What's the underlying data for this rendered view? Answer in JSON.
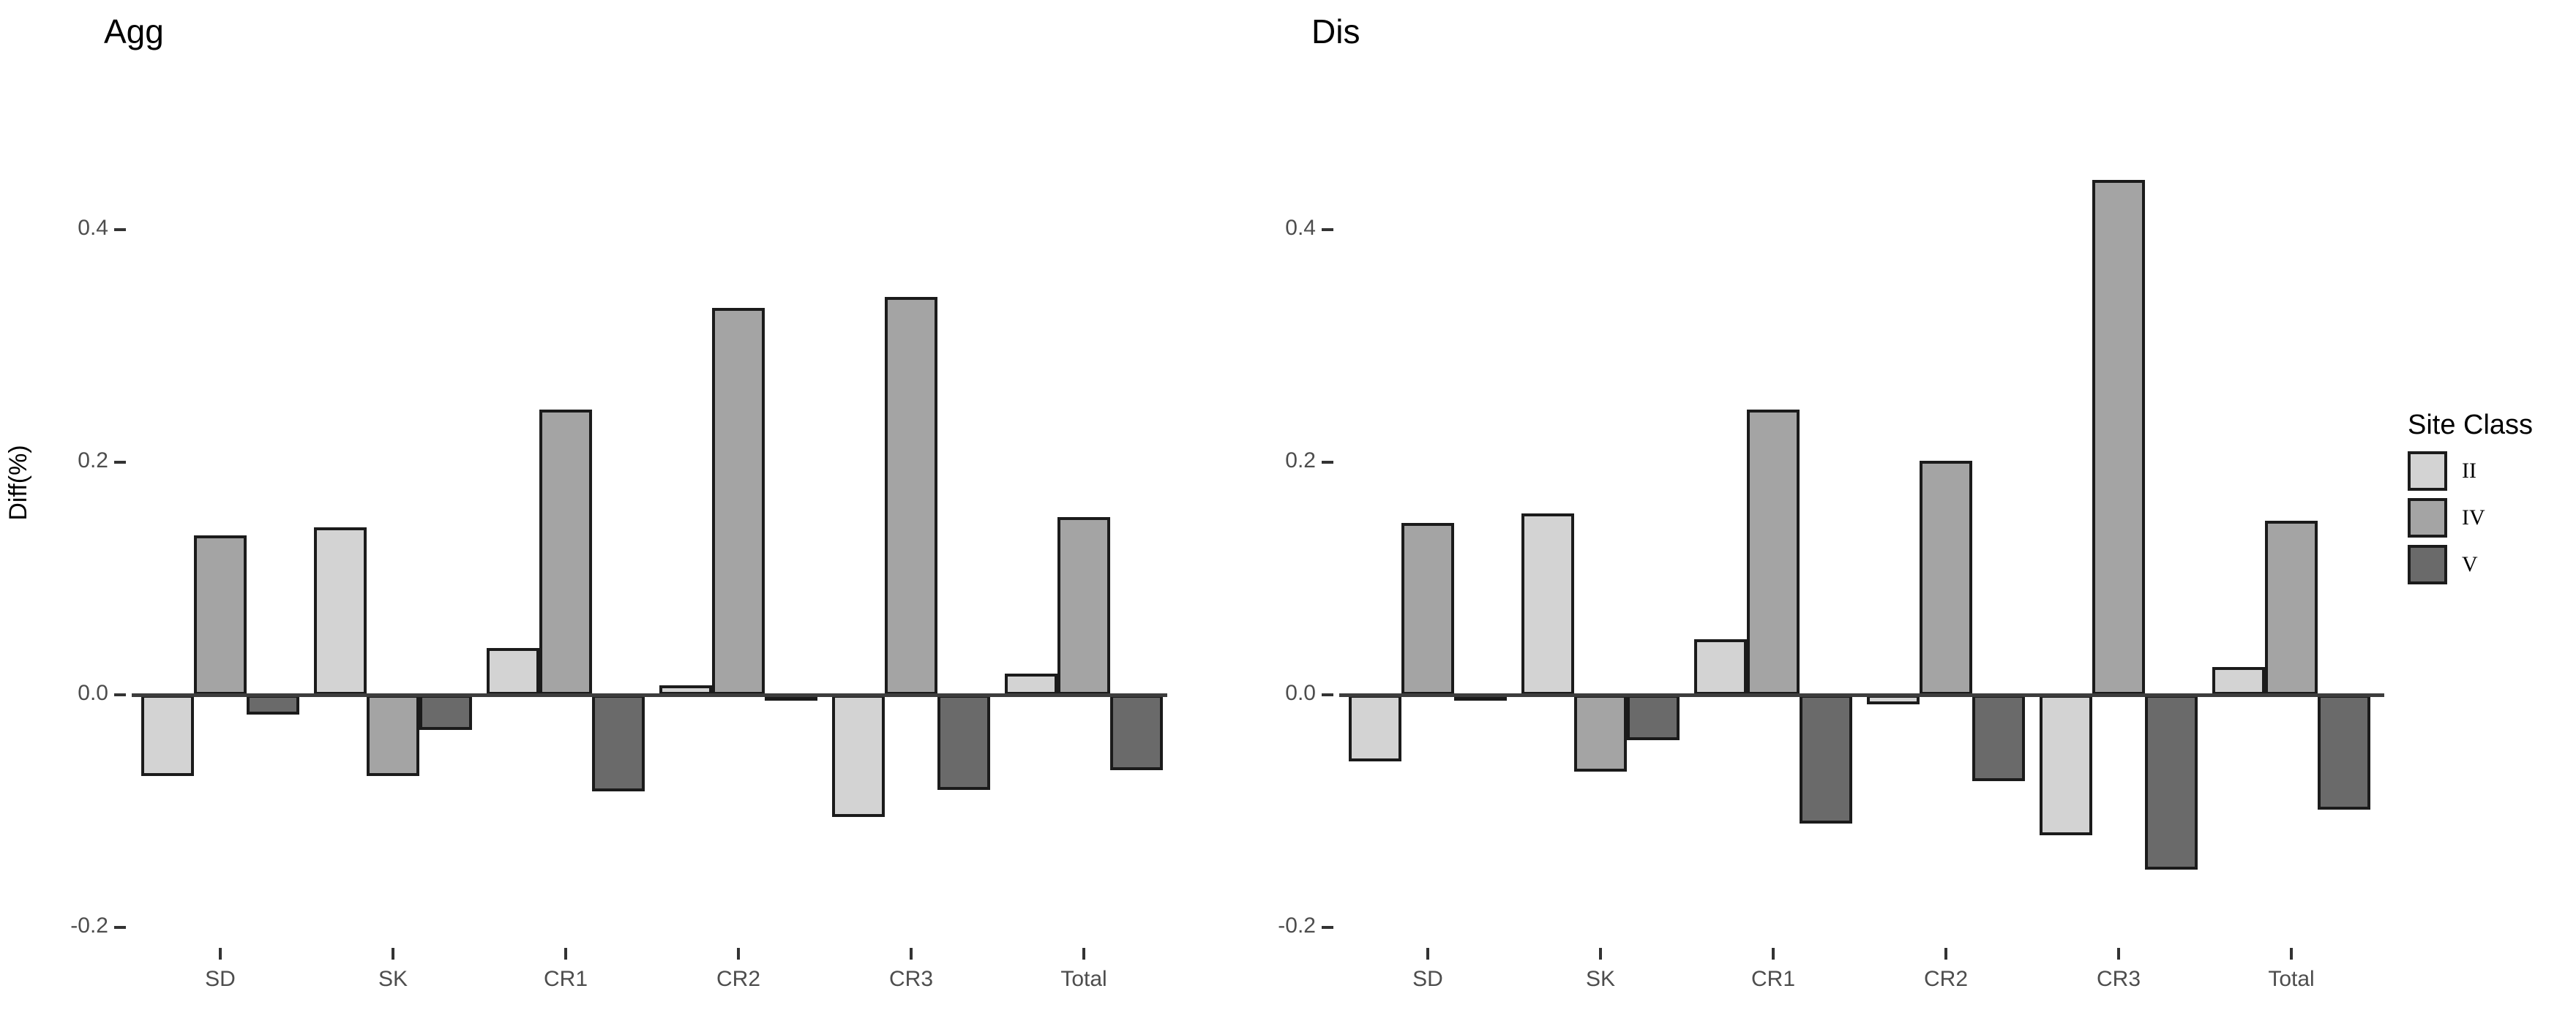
{
  "figure": {
    "ylabel": "Diff(%)",
    "y_ticks": [
      0.4,
      0.2,
      0.0,
      -0.2
    ],
    "categories": [
      "SD",
      "SK",
      "CR1",
      "CR2",
      "CR3",
      "Total"
    ],
    "legend": {
      "title": "Site Class",
      "items": [
        {
          "label": "II",
          "color": "#d3d3d3"
        },
        {
          "label": "IV",
          "color": "#a4a4a4"
        },
        {
          "label": "V",
          "color": "#6a6a6a"
        }
      ]
    },
    "colors": {
      "bar_border": "#1b1b1b",
      "axis_line": "#3d3d3d",
      "tick_text": "#4d4d4d"
    }
  },
  "chart_data": [
    {
      "type": "bar",
      "title": "Agg",
      "categories": [
        "SD",
        "SK",
        "CR1",
        "CR2",
        "CR3",
        "Total"
      ],
      "series": [
        {
          "name": "II",
          "values": [
            -0.07,
            0.144,
            0.04,
            0.008,
            -0.105,
            0.018
          ]
        },
        {
          "name": "IV",
          "values": [
            0.137,
            -0.07,
            0.245,
            0.333,
            0.342,
            0.153
          ]
        },
        {
          "name": "V",
          "values": [
            -0.017,
            -0.03,
            -0.083,
            -0.005,
            -0.082,
            -0.065
          ]
        }
      ],
      "ylabel": "Diff(%)",
      "ylim": [
        -0.22,
        0.54
      ],
      "yticks": [
        0.4,
        0.2,
        0.0,
        -0.2
      ],
      "grid": false,
      "legend_position": "right"
    },
    {
      "type": "bar",
      "title": "Dis",
      "categories": [
        "SD",
        "SK",
        "CR1",
        "CR2",
        "CR3",
        "Total"
      ],
      "series": [
        {
          "name": "II",
          "values": [
            -0.057,
            0.156,
            0.048,
            -0.008,
            -0.121,
            0.024
          ]
        },
        {
          "name": "IV",
          "values": [
            0.148,
            -0.066,
            0.245,
            0.201,
            0.443,
            0.15
          ]
        },
        {
          "name": "V",
          "values": [
            -0.005,
            -0.039,
            -0.111,
            -0.074,
            -0.15,
            -0.099
          ]
        }
      ],
      "ylabel": "Diff(%)",
      "ylim": [
        -0.22,
        0.54
      ],
      "yticks": [
        0.4,
        0.2,
        0.0,
        -0.2
      ],
      "grid": false,
      "legend_position": "right"
    }
  ]
}
